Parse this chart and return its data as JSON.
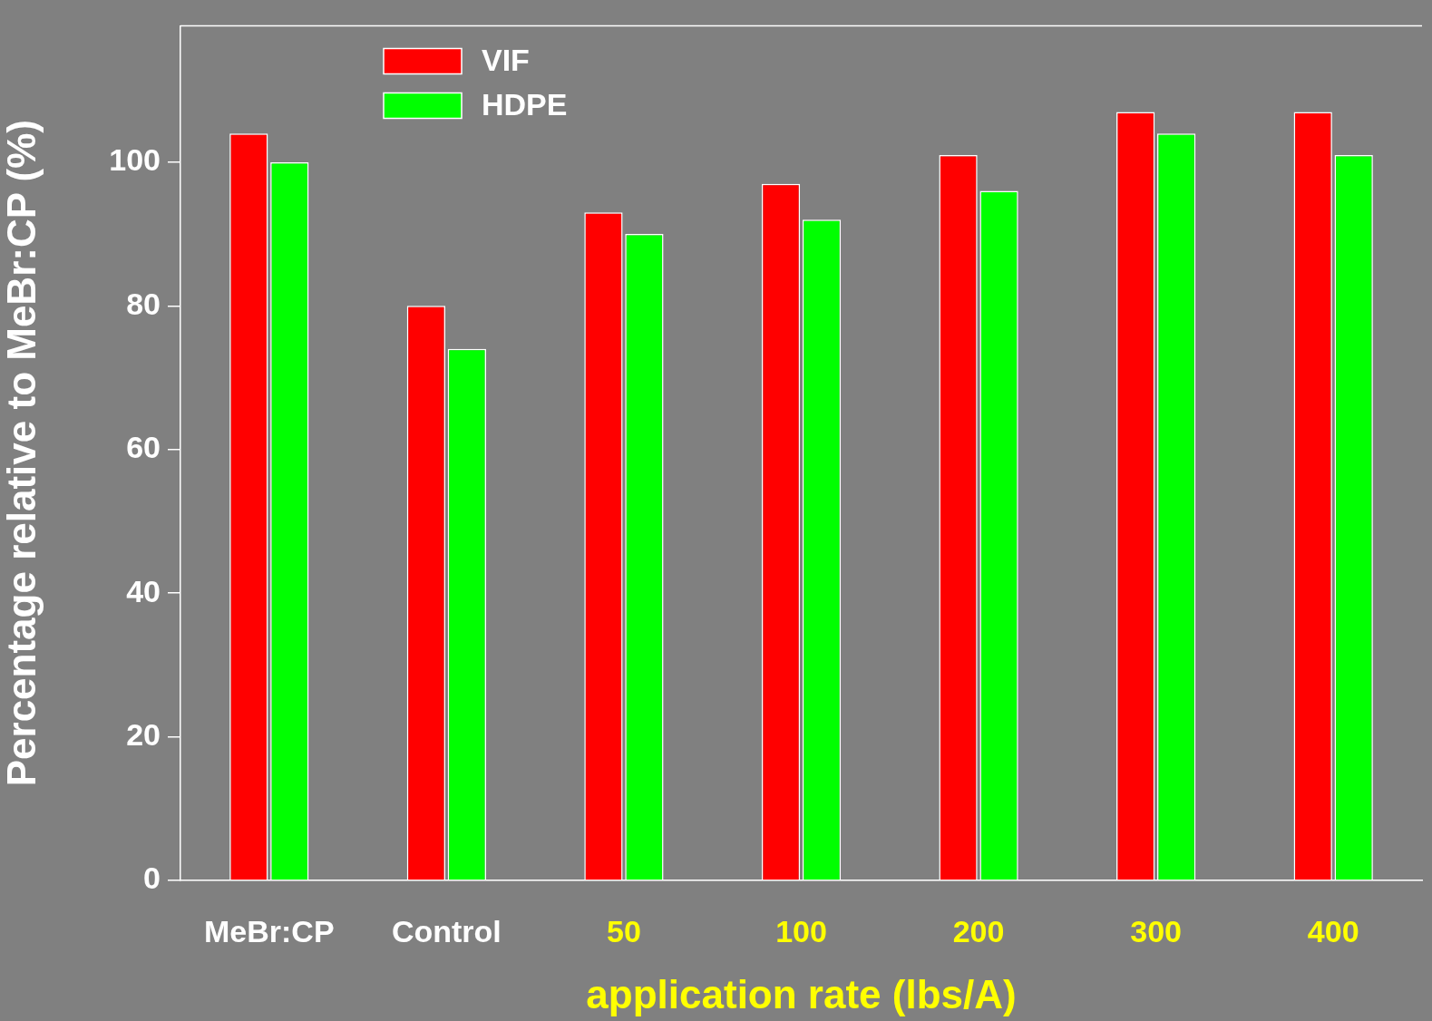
{
  "chart_data": {
    "type": "bar",
    "xlabel": "application rate (lbs/A)",
    "ylabel": "Percentage relative to MeBr:CP (%)",
    "categories": [
      "MeBr:CP",
      "Control",
      "50",
      "100",
      "200",
      "300",
      "400"
    ],
    "series": [
      {
        "name": "VIF",
        "color": "#ff0000",
        "values": [
          104,
          80,
          93,
          97,
          101,
          107,
          107
        ]
      },
      {
        "name": "HDPE",
        "color": "#00ff00",
        "values": [
          100,
          74,
          90,
          92,
          96,
          104,
          101
        ]
      }
    ],
    "ylim": [
      0,
      119
    ],
    "yticks": [
      0,
      20,
      40,
      60,
      80,
      100
    ],
    "grid": false,
    "legend": "top left"
  }
}
